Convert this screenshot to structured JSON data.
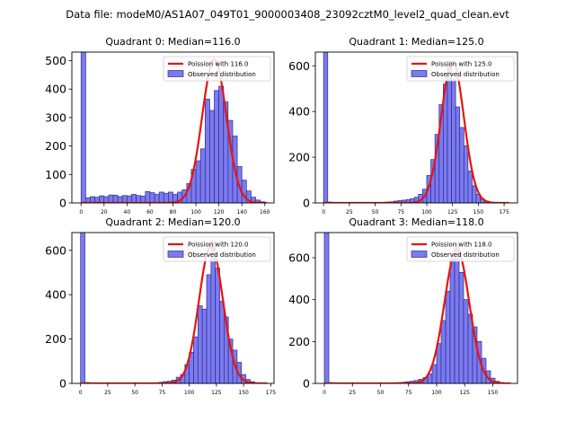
{
  "suptitle": "Data file: modeM0/AS1A07_049T01_9000003408_23092cztM0_level2_quad_clean.evt",
  "colors": {
    "hist_fill": "#7b7bef",
    "hist_edge": "#2b2b8f",
    "poisson_line": "#e8140c"
  },
  "chart_data": [
    {
      "type": "bar",
      "title": "Quadrant 0: Median=116.0",
      "median": 116.0,
      "xlim": [
        -8,
        168
      ],
      "ylim": [
        0,
        530
      ],
      "xticks": [
        0,
        20,
        40,
        60,
        80,
        100,
        120,
        140,
        160
      ],
      "yticks": [
        0,
        100,
        200,
        300,
        400,
        500
      ],
      "bin_width": 4,
      "bins_start": [
        0,
        4,
        8,
        12,
        16,
        20,
        24,
        28,
        32,
        36,
        40,
        44,
        48,
        52,
        56,
        60,
        64,
        68,
        72,
        76,
        80,
        84,
        88,
        92,
        96,
        100,
        104,
        108,
        112,
        116,
        120,
        124,
        128,
        132,
        136,
        140,
        144,
        148,
        152,
        156
      ],
      "counts": [
        530,
        18,
        22,
        20,
        25,
        22,
        28,
        27,
        22,
        26,
        25,
        30,
        26,
        24,
        40,
        36,
        30,
        38,
        34,
        38,
        30,
        38,
        46,
        68,
        118,
        148,
        190,
        365,
        325,
        395,
        410,
        355,
        290,
        235,
        128,
        80,
        42,
        20,
        10,
        4
      ],
      "poisson_label": "Poission with 116.0",
      "hist_label": "Observed distribution",
      "poisson_peak": 505,
      "poisson_sigma": 10.5
    },
    {
      "type": "bar",
      "title": "Quadrant 1: Median=125.0",
      "median": 125.0,
      "xlim": [
        -8,
        188
      ],
      "ylim": [
        0,
        660
      ],
      "xticks": [
        0,
        25,
        50,
        75,
        100,
        125,
        150,
        175
      ],
      "yticks": [
        0,
        200,
        400,
        600
      ],
      "bin_width": 4,
      "bins_start": [
        0,
        4,
        60,
        64,
        68,
        72,
        76,
        80,
        84,
        88,
        92,
        96,
        100,
        104,
        108,
        112,
        116,
        120,
        124,
        128,
        132,
        136,
        140,
        144,
        148,
        152,
        156,
        160,
        164
      ],
      "counts": [
        660,
        4,
        4,
        5,
        8,
        10,
        12,
        15,
        18,
        25,
        38,
        60,
        120,
        190,
        300,
        430,
        520,
        600,
        540,
        420,
        330,
        250,
        140,
        75,
        38,
        18,
        8,
        4,
        2
      ],
      "poisson_label": "Poission with 125.0",
      "hist_label": "Observed distribution",
      "poisson_peak": 620,
      "poisson_sigma": 11
    },
    {
      "type": "bar",
      "title": "Quadrant 2: Median=120.0",
      "median": 120.0,
      "xlim": [
        -8,
        178
      ],
      "ylim": [
        0,
        680
      ],
      "xticks": [
        0,
        25,
        50,
        75,
        100,
        125,
        150,
        175
      ],
      "yticks": [
        0,
        200,
        400,
        600
      ],
      "bin_width": 4,
      "bins_start": [
        0,
        4,
        68,
        72,
        76,
        80,
        84,
        88,
        92,
        96,
        100,
        104,
        108,
        112,
        116,
        120,
        124,
        128,
        132,
        136,
        140,
        144,
        148,
        152,
        156,
        160
      ],
      "counts": [
        680,
        4,
        3,
        5,
        8,
        10,
        15,
        28,
        40,
        85,
        140,
        210,
        350,
        335,
        490,
        640,
        520,
        370,
        300,
        200,
        150,
        95,
        40,
        18,
        8,
        3
      ],
      "poisson_label": "Poission with 120.0",
      "hist_label": "Observed distribution",
      "poisson_peak": 620,
      "poisson_sigma": 11
    },
    {
      "type": "bar",
      "title": "Quadrant 3: Median=118.0",
      "median": 118.0,
      "xlim": [
        -8,
        172
      ],
      "ylim": [
        0,
        720
      ],
      "xticks": [
        0,
        25,
        50,
        75,
        100,
        125,
        150
      ],
      "yticks": [
        0,
        200,
        400,
        600
      ],
      "bin_width": 4,
      "bins_start": [
        0,
        4,
        64,
        68,
        72,
        76,
        80,
        84,
        88,
        92,
        96,
        100,
        104,
        108,
        112,
        116,
        120,
        124,
        128,
        132,
        136,
        140,
        144,
        148,
        152,
        156
      ],
      "counts": [
        720,
        4,
        4,
        5,
        8,
        10,
        14,
        20,
        28,
        45,
        90,
        190,
        300,
        440,
        590,
        670,
        530,
        400,
        330,
        270,
        200,
        120,
        60,
        25,
        10,
        4
      ],
      "poisson_label": "Poission with 118.0",
      "hist_label": "Observed distribution",
      "poisson_peak": 640,
      "poisson_sigma": 11
    }
  ]
}
